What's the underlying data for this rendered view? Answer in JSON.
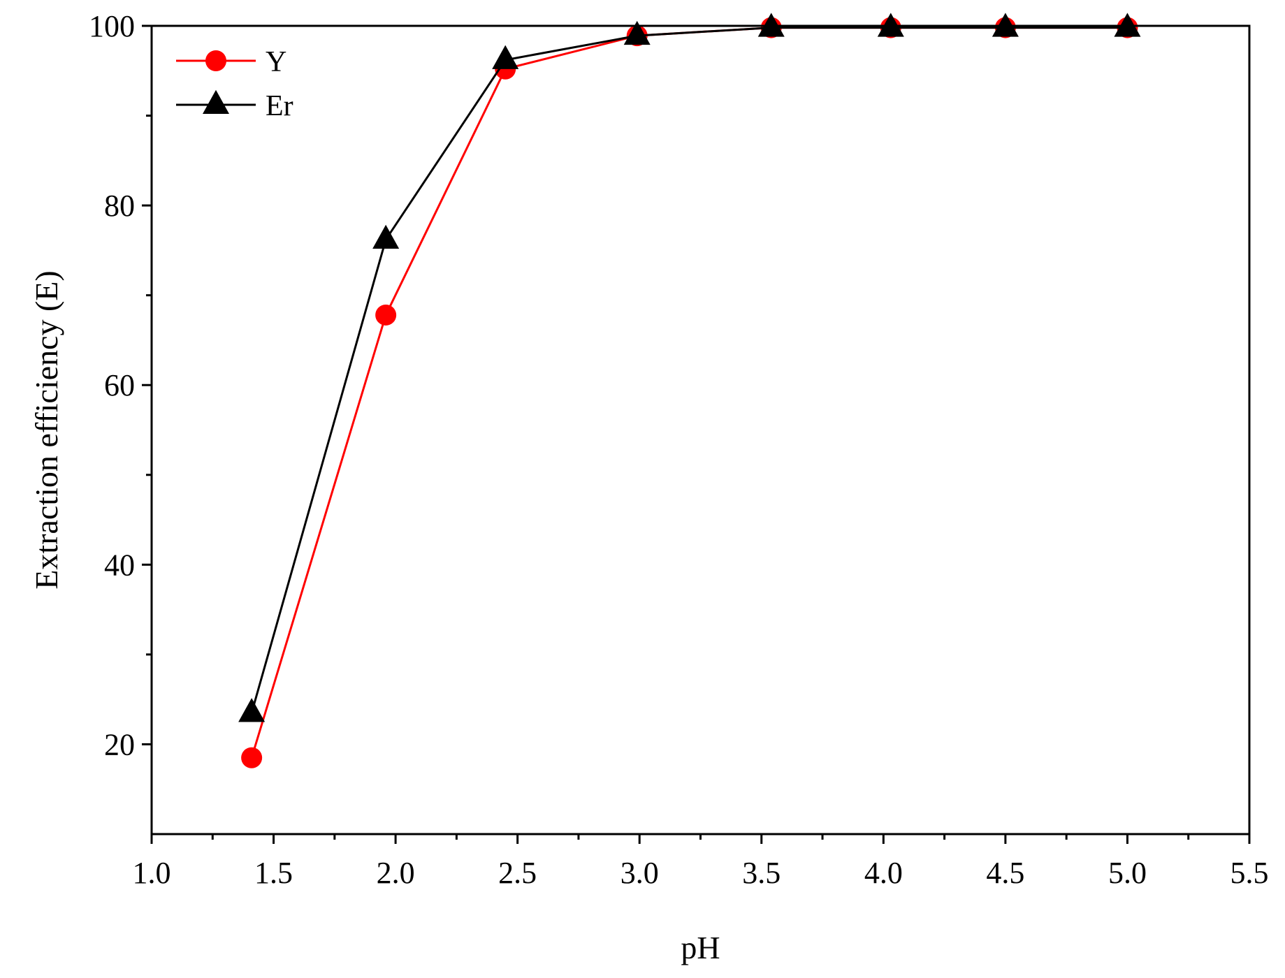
{
  "chart_data": {
    "type": "line",
    "title": "",
    "xlabel": "pH",
    "ylabel": "Extraction efficiency (E)",
    "xlim": [
      1.0,
      5.5
    ],
    "ylim": [
      10,
      100
    ],
    "x_ticks": [
      "1.0",
      "1.5",
      "2.0",
      "2.5",
      "3.0",
      "3.5",
      "4.0",
      "4.5",
      "5.0",
      "5.5"
    ],
    "x_tick_values": [
      1.0,
      1.5,
      2.0,
      2.5,
      3.0,
      3.5,
      4.0,
      4.5,
      5.0,
      5.5
    ],
    "y_ticks": [
      "20",
      "40",
      "60",
      "80",
      "100"
    ],
    "y_tick_values": [
      20,
      40,
      60,
      80,
      100
    ],
    "grid": false,
    "legend_position": "top-left",
    "series": [
      {
        "name": "Y",
        "color": "#ff0000",
        "marker": "circle",
        "x": [
          1.41,
          1.96,
          2.45,
          2.99,
          3.54,
          4.03,
          4.5,
          5.0
        ],
        "y": [
          18.5,
          67.8,
          95.2,
          98.9,
          99.8,
          99.8,
          99.8,
          99.8
        ]
      },
      {
        "name": "Er",
        "color": "#000000",
        "marker": "triangle",
        "x": [
          1.41,
          1.96,
          2.45,
          2.99,
          3.54,
          4.03,
          4.5,
          5.0
        ],
        "y": [
          23.5,
          76.2,
          96.2,
          98.9,
          99.8,
          99.8,
          99.8,
          99.8
        ]
      }
    ]
  }
}
